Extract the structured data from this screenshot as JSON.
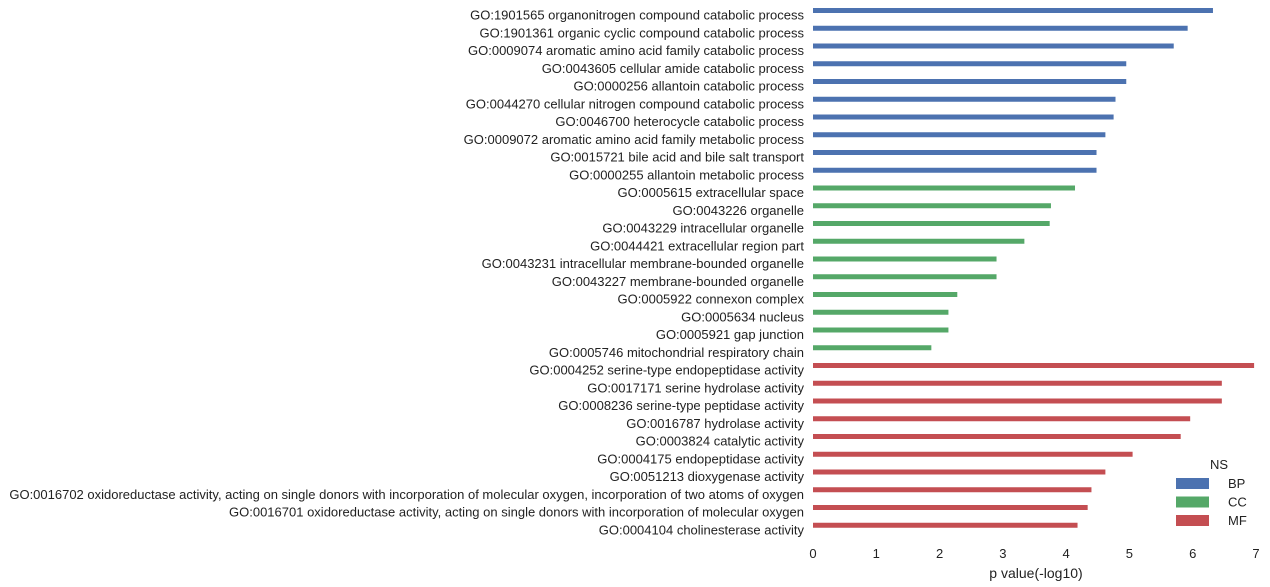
{
  "chart_data": {
    "type": "bar",
    "orientation": "horizontal",
    "xlabel": "p value(-log10)",
    "ylabel": "",
    "title": "",
    "xlim": [
      0,
      7
    ],
    "xticks": [
      0,
      1,
      2,
      3,
      4,
      5,
      6,
      7
    ],
    "grid": false,
    "legend": {
      "title": "NS",
      "placement": "lower-right",
      "entries": [
        {
          "name": "BP",
          "color": "#4c72b0"
        },
        {
          "name": "CC",
          "color": "#55a868"
        },
        {
          "name": "MF",
          "color": "#c44e52"
        }
      ]
    },
    "categories": [
      {
        "label": "GO:1901565 organonitrogen compound catabolic process",
        "value": 6.32,
        "ns": "BP"
      },
      {
        "label": "GO:1901361 organic cyclic compound catabolic process",
        "value": 5.92,
        "ns": "BP"
      },
      {
        "label": "GO:0009074 aromatic amino acid family catabolic process",
        "value": 5.7,
        "ns": "BP"
      },
      {
        "label": "GO:0043605 cellular amide catabolic process",
        "value": 4.95,
        "ns": "BP"
      },
      {
        "label": "GO:0000256 allantoin catabolic process",
        "value": 4.95,
        "ns": "BP"
      },
      {
        "label": "GO:0044270 cellular nitrogen compound catabolic process",
        "value": 4.78,
        "ns": "BP"
      },
      {
        "label": "GO:0046700 heterocycle catabolic process",
        "value": 4.75,
        "ns": "BP"
      },
      {
        "label": "GO:0009072 aromatic amino acid family metabolic process",
        "value": 4.62,
        "ns": "BP"
      },
      {
        "label": "GO:0015721 bile acid and bile salt transport",
        "value": 4.48,
        "ns": "BP"
      },
      {
        "label": "GO:0000255 allantoin metabolic process",
        "value": 4.48,
        "ns": "BP"
      },
      {
        "label": "GO:0005615 extracellular space",
        "value": 4.14,
        "ns": "CC"
      },
      {
        "label": "GO:0043226 organelle",
        "value": 3.76,
        "ns": "CC"
      },
      {
        "label": "GO:0043229 intracellular organelle",
        "value": 3.74,
        "ns": "CC"
      },
      {
        "label": "GO:0044421 extracellular region part",
        "value": 3.34,
        "ns": "CC"
      },
      {
        "label": "GO:0043231 intracellular membrane-bounded organelle",
        "value": 2.9,
        "ns": "CC"
      },
      {
        "label": "GO:0043227 membrane-bounded organelle",
        "value": 2.9,
        "ns": "CC"
      },
      {
        "label": "GO:0005922 connexon complex",
        "value": 2.28,
        "ns": "CC"
      },
      {
        "label": "GO:0005634 nucleus",
        "value": 2.14,
        "ns": "CC"
      },
      {
        "label": "GO:0005921 gap junction",
        "value": 2.14,
        "ns": "CC"
      },
      {
        "label": "GO:0005746 mitochondrial respiratory chain",
        "value": 1.87,
        "ns": "CC"
      },
      {
        "label": "GO:0004252 serine-type endopeptidase activity",
        "value": 6.97,
        "ns": "MF"
      },
      {
        "label": "GO:0017171 serine hydrolase activity",
        "value": 6.46,
        "ns": "MF"
      },
      {
        "label": "GO:0008236 serine-type peptidase activity",
        "value": 6.46,
        "ns": "MF"
      },
      {
        "label": "GO:0016787 hydrolase activity",
        "value": 5.96,
        "ns": "MF"
      },
      {
        "label": "GO:0003824 catalytic activity",
        "value": 5.81,
        "ns": "MF"
      },
      {
        "label": "GO:0004175 endopeptidase activity",
        "value": 5.05,
        "ns": "MF"
      },
      {
        "label": "GO:0051213 dioxygenase activity",
        "value": 4.62,
        "ns": "MF"
      },
      {
        "label": "GO:0016702 oxidoreductase activity, acting on single donors with incorporation of molecular oxygen, incorporation of two atoms of oxygen",
        "value": 4.4,
        "ns": "MF"
      },
      {
        "label": "GO:0016701 oxidoreductase activity, acting on single donors with incorporation of molecular oxygen",
        "value": 4.34,
        "ns": "MF"
      },
      {
        "label": "GO:0004104 cholinesterase activity",
        "value": 4.18,
        "ns": "MF"
      }
    ]
  }
}
